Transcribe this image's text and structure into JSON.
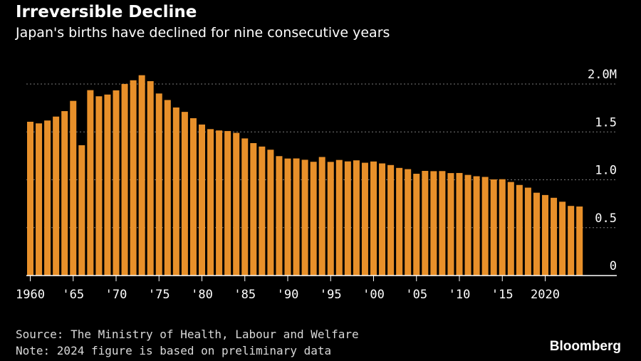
{
  "header": {
    "title": "Irreversible Decline",
    "subtitle": "Japan's births have declined for nine consecutive years"
  },
  "footer": {
    "source": "Source: The Ministry of Health, Labour and Welfare",
    "note": "Note: 2024 figure is based on preliminary data",
    "brand": "Bloomberg"
  },
  "colors": {
    "bar": "#e8902a",
    "background": "#000000",
    "grid": "#7a7a7a",
    "axis": "#ffffff"
  },
  "chart_data": {
    "type": "bar",
    "title": "Irreversible Decline",
    "subtitle": "Japan's births have declined for nine consecutive years",
    "xlabel": "",
    "ylabel": "",
    "ylim": [
      0,
      2.0
    ],
    "y_unit": "millions of births",
    "yticks": [
      {
        "value": 0,
        "label": "0"
      },
      {
        "value": 0.5,
        "label": "0.5"
      },
      {
        "value": 1.0,
        "label": "1.0"
      },
      {
        "value": 1.5,
        "label": "1.5"
      },
      {
        "value": 2.0,
        "label": "2.0M"
      }
    ],
    "xticks": [
      {
        "year": 1960,
        "label": "1960"
      },
      {
        "year": 1965,
        "label": "'65"
      },
      {
        "year": 1970,
        "label": "'70"
      },
      {
        "year": 1975,
        "label": "'75"
      },
      {
        "year": 1980,
        "label": "'80"
      },
      {
        "year": 1985,
        "label": "'85"
      },
      {
        "year": 1990,
        "label": "'90"
      },
      {
        "year": 1995,
        "label": "'95"
      },
      {
        "year": 2000,
        "label": "'00"
      },
      {
        "year": 2005,
        "label": "'05"
      },
      {
        "year": 2010,
        "label": "'10"
      },
      {
        "year": 2015,
        "label": "'15"
      },
      {
        "year": 2020,
        "label": "2020"
      }
    ],
    "grid": true,
    "legend": "none",
    "x": [
      1960,
      1961,
      1962,
      1963,
      1964,
      1965,
      1966,
      1967,
      1968,
      1969,
      1970,
      1971,
      1972,
      1973,
      1974,
      1975,
      1976,
      1977,
      1978,
      1979,
      1980,
      1981,
      1982,
      1983,
      1984,
      1985,
      1986,
      1987,
      1988,
      1989,
      1990,
      1991,
      1992,
      1993,
      1994,
      1995,
      1996,
      1997,
      1998,
      1999,
      2000,
      2001,
      2002,
      2003,
      2004,
      2005,
      2006,
      2007,
      2008,
      2009,
      2010,
      2011,
      2012,
      2013,
      2014,
      2015,
      2016,
      2017,
      2018,
      2019,
      2020,
      2021,
      2022,
      2023,
      2024
    ],
    "values": [
      1.606,
      1.589,
      1.619,
      1.66,
      1.717,
      1.824,
      1.361,
      1.936,
      1.872,
      1.89,
      1.934,
      2.001,
      2.039,
      2.092,
      2.03,
      1.901,
      1.833,
      1.755,
      1.709,
      1.643,
      1.577,
      1.529,
      1.515,
      1.509,
      1.49,
      1.432,
      1.383,
      1.347,
      1.314,
      1.247,
      1.222,
      1.223,
      1.209,
      1.188,
      1.238,
      1.187,
      1.207,
      1.192,
      1.203,
      1.178,
      1.191,
      1.171,
      1.154,
      1.124,
      1.111,
      1.063,
      1.093,
      1.09,
      1.091,
      1.07,
      1.071,
      1.051,
      1.037,
      1.03,
      1.004,
      1.006,
      0.977,
      0.946,
      0.918,
      0.865,
      0.841,
      0.812,
      0.771,
      0.727,
      0.721
    ]
  }
}
